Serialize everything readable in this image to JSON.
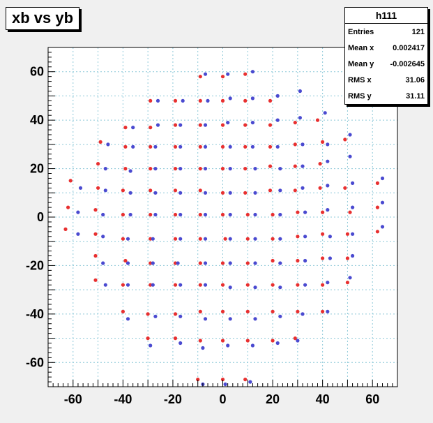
{
  "title": "xb vs yb",
  "stats": {
    "name": "h111",
    "rows": [
      {
        "label": "Entries",
        "value": "121"
      },
      {
        "label": "Mean x",
        "value": "0.002417"
      },
      {
        "label": "Mean y",
        "value": "-0.002645"
      },
      {
        "label": "RMS x",
        "value": "31.06"
      },
      {
        "label": "RMS y",
        "value": "31.11"
      }
    ]
  },
  "colors": {
    "red": "#e83030",
    "blue": "#4a4ad0",
    "grid": "#8cc8d8",
    "frame": "#000000"
  },
  "chart_data": {
    "type": "scatter",
    "title": "xb vs yb",
    "xlim": [
      -70,
      70
    ],
    "ylim": [
      -70,
      70
    ],
    "xticks": [
      -60,
      -40,
      -20,
      0,
      20,
      40,
      60
    ],
    "yticks": [
      -60,
      -40,
      -20,
      0,
      20,
      40,
      60
    ],
    "grid": true,
    "series": [
      {
        "color_key": "red",
        "points": [
          [
            -9,
            58
          ],
          [
            0,
            58
          ],
          [
            9,
            59
          ],
          [
            -29,
            48
          ],
          [
            -19,
            48
          ],
          [
            -9,
            48
          ],
          [
            0,
            48
          ],
          [
            9,
            48
          ],
          [
            19,
            48
          ],
          [
            -39,
            37
          ],
          [
            -29,
            37
          ],
          [
            -19,
            38
          ],
          [
            -9,
            38
          ],
          [
            0,
            38
          ],
          [
            9,
            38
          ],
          [
            19,
            38
          ],
          [
            29,
            39
          ],
          [
            38,
            40
          ],
          [
            -49,
            31
          ],
          [
            -39,
            29
          ],
          [
            -29,
            29
          ],
          [
            -19,
            29
          ],
          [
            -9,
            29
          ],
          [
            0,
            29
          ],
          [
            9,
            29
          ],
          [
            19,
            29
          ],
          [
            29,
            30
          ],
          [
            40,
            31
          ],
          [
            49,
            32
          ],
          [
            -50,
            22
          ],
          [
            -39,
            20
          ],
          [
            -29,
            20
          ],
          [
            -19,
            20
          ],
          [
            -9,
            20
          ],
          [
            0,
            20
          ],
          [
            9,
            20
          ],
          [
            19,
            21
          ],
          [
            29,
            21
          ],
          [
            39,
            22
          ],
          [
            -61,
            15
          ],
          [
            -50,
            12
          ],
          [
            -40,
            11
          ],
          [
            -29,
            11
          ],
          [
            -19,
            11
          ],
          [
            -9,
            11
          ],
          [
            0,
            10
          ],
          [
            9,
            10
          ],
          [
            19,
            11
          ],
          [
            29,
            11
          ],
          [
            39,
            12
          ],
          [
            49,
            12
          ],
          [
            62,
            14
          ],
          [
            -62,
            4
          ],
          [
            -51,
            3
          ],
          [
            -40,
            1
          ],
          [
            -29,
            1
          ],
          [
            -19,
            1
          ],
          [
            -9,
            1
          ],
          [
            0,
            1
          ],
          [
            10,
            1
          ],
          [
            20,
            1
          ],
          [
            30,
            2
          ],
          [
            40,
            2
          ],
          [
            51,
            2
          ],
          [
            62,
            4
          ],
          [
            -63,
            -5
          ],
          [
            -51,
            -7
          ],
          [
            -40,
            -9
          ],
          [
            -29,
            -9
          ],
          [
            -19,
            -9
          ],
          [
            -9,
            -9
          ],
          [
            1,
            -9
          ],
          [
            10,
            -9
          ],
          [
            20,
            -9
          ],
          [
            30,
            -8
          ],
          [
            40,
            -7
          ],
          [
            50,
            -7
          ],
          [
            62,
            -6
          ],
          [
            -51,
            -16
          ],
          [
            -39,
            -18
          ],
          [
            -29,
            -19
          ],
          [
            -19,
            -19
          ],
          [
            -9,
            -19
          ],
          [
            0,
            -19
          ],
          [
            10,
            -19
          ],
          [
            20,
            -18
          ],
          [
            30,
            -18
          ],
          [
            40,
            -17
          ],
          [
            50,
            -17
          ],
          [
            -51,
            -26
          ],
          [
            -40,
            -28
          ],
          [
            -29,
            -28
          ],
          [
            -19,
            -28
          ],
          [
            -9,
            -28
          ],
          [
            0,
            -28
          ],
          [
            10,
            -28
          ],
          [
            20,
            -28
          ],
          [
            30,
            -28
          ],
          [
            40,
            -28
          ],
          [
            50,
            -27
          ],
          [
            -40,
            -39
          ],
          [
            -30,
            -40
          ],
          [
            -19,
            -40
          ],
          [
            -9,
            -39
          ],
          [
            0,
            -39
          ],
          [
            10,
            -39
          ],
          [
            20,
            -39
          ],
          [
            30,
            -39
          ],
          [
            40,
            -39
          ],
          [
            -30,
            -50
          ],
          [
            -19,
            -50
          ],
          [
            -9,
            -51
          ],
          [
            0,
            -51
          ],
          [
            10,
            -51
          ],
          [
            20,
            -51
          ],
          [
            29,
            -50
          ],
          [
            -10,
            -67
          ],
          [
            0,
            -67
          ],
          [
            9,
            -67
          ]
        ]
      },
      {
        "color_key": "blue",
        "points": [
          [
            -7,
            59
          ],
          [
            2,
            59
          ],
          [
            12,
            60
          ],
          [
            -26,
            48
          ],
          [
            -16,
            48
          ],
          [
            -6,
            48
          ],
          [
            3,
            49
          ],
          [
            12,
            49
          ],
          [
            22,
            50
          ],
          [
            31,
            52
          ],
          [
            -36,
            37
          ],
          [
            -26,
            38
          ],
          [
            -17,
            38
          ],
          [
            -7,
            38
          ],
          [
            2,
            39
          ],
          [
            12,
            39
          ],
          [
            22,
            40
          ],
          [
            31,
            41
          ],
          [
            41,
            43
          ],
          [
            -46,
            30
          ],
          [
            -36,
            29
          ],
          [
            -27,
            29
          ],
          [
            -17,
            29
          ],
          [
            -7,
            29
          ],
          [
            3,
            29
          ],
          [
            12,
            29
          ],
          [
            22,
            29
          ],
          [
            32,
            30
          ],
          [
            42,
            30
          ],
          [
            51,
            34
          ],
          [
            -47,
            20
          ],
          [
            -37,
            19
          ],
          [
            -27,
            20
          ],
          [
            -17,
            20
          ],
          [
            -7,
            20
          ],
          [
            3,
            20
          ],
          [
            13,
            20
          ],
          [
            23,
            20
          ],
          [
            32,
            21
          ],
          [
            42,
            23
          ],
          [
            51,
            25
          ],
          [
            -57,
            12
          ],
          [
            -47,
            11
          ],
          [
            -37,
            10
          ],
          [
            -27,
            10
          ],
          [
            -17,
            10
          ],
          [
            -7,
            10
          ],
          [
            3,
            10
          ],
          [
            13,
            10
          ],
          [
            23,
            11
          ],
          [
            32,
            12
          ],
          [
            42,
            13
          ],
          [
            52,
            14
          ],
          [
            64,
            16
          ],
          [
            -58,
            2
          ],
          [
            -48,
            1
          ],
          [
            -37,
            1
          ],
          [
            -27,
            1
          ],
          [
            -17,
            1
          ],
          [
            -7,
            1
          ],
          [
            3,
            1
          ],
          [
            13,
            1
          ],
          [
            23,
            1
          ],
          [
            33,
            2
          ],
          [
            42,
            3
          ],
          [
            52,
            4
          ],
          [
            64,
            6
          ],
          [
            -58,
            -7
          ],
          [
            -48,
            -8
          ],
          [
            -38,
            -9
          ],
          [
            -28,
            -9
          ],
          [
            -17,
            -9
          ],
          [
            -7,
            -9
          ],
          [
            3,
            -9
          ],
          [
            13,
            -9
          ],
          [
            23,
            -9
          ],
          [
            33,
            -8
          ],
          [
            43,
            -8
          ],
          [
            52,
            -7
          ],
          [
            64,
            -4
          ],
          [
            -48,
            -19
          ],
          [
            -38,
            -19
          ],
          [
            -28,
            -19
          ],
          [
            -18,
            -19
          ],
          [
            -7,
            -19
          ],
          [
            3,
            -19
          ],
          [
            13,
            -19
          ],
          [
            23,
            -19
          ],
          [
            33,
            -18
          ],
          [
            43,
            -17
          ],
          [
            52,
            -16
          ],
          [
            -47,
            -28
          ],
          [
            -38,
            -28
          ],
          [
            -28,
            -28
          ],
          [
            -17,
            -28
          ],
          [
            -7,
            -28
          ],
          [
            3,
            -29
          ],
          [
            13,
            -29
          ],
          [
            23,
            -29
          ],
          [
            33,
            -28
          ],
          [
            42,
            -27
          ],
          [
            51,
            -25
          ],
          [
            -38,
            -42
          ],
          [
            -27,
            -41
          ],
          [
            -17,
            -41
          ],
          [
            -7,
            -42
          ],
          [
            3,
            -42
          ],
          [
            13,
            -42
          ],
          [
            23,
            -41
          ],
          [
            32,
            -40
          ],
          [
            42,
            -39
          ],
          [
            -29,
            -53
          ],
          [
            -17,
            -52
          ],
          [
            -8,
            -54
          ],
          [
            2,
            -53
          ],
          [
            12,
            -53
          ],
          [
            22,
            -52
          ],
          [
            30,
            -51
          ],
          [
            -8,
            -69
          ],
          [
            1,
            -69
          ],
          [
            11,
            -68
          ]
        ]
      }
    ]
  }
}
